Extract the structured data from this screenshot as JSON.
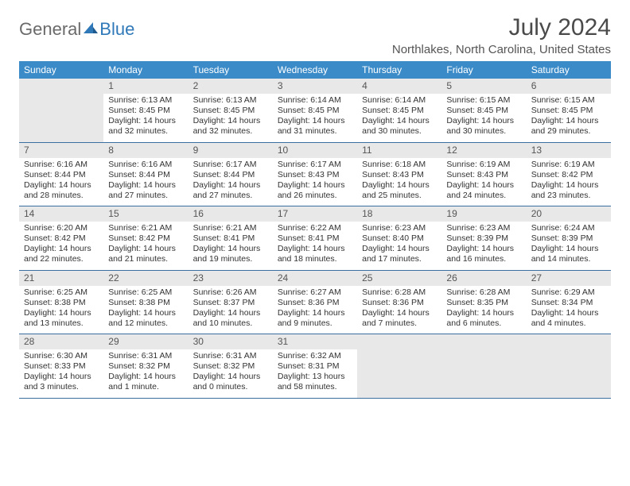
{
  "brand": {
    "part1": "General",
    "part2": "Blue"
  },
  "title": "July 2024",
  "location": "Northlakes, North Carolina, United States",
  "weekdays": [
    "Sunday",
    "Monday",
    "Tuesday",
    "Wednesday",
    "Thursday",
    "Friday",
    "Saturday"
  ],
  "colors": {
    "header_bg": "#3b8bc8",
    "header_text": "#ffffff",
    "row_divider": "#3b6fa0",
    "daynum_bg": "#e8e8e8",
    "text": "#333333",
    "title_text": "#4a4a4a",
    "logo_gray": "#6a6a6a",
    "logo_blue": "#2f79b8",
    "background": "#ffffff"
  },
  "typography": {
    "title_fontsize": 30,
    "location_fontsize": 15,
    "weekday_fontsize": 12,
    "daynum_fontsize": 12,
    "body_fontsize": 10.5
  },
  "layout": {
    "columns": 7,
    "rows": 5,
    "leading_blanks": 1,
    "trailing_blanks": 3
  },
  "days": [
    {
      "n": "1",
      "sunrise": "6:13 AM",
      "sunset": "8:45 PM",
      "daylight": "14 hours and 32 minutes."
    },
    {
      "n": "2",
      "sunrise": "6:13 AM",
      "sunset": "8:45 PM",
      "daylight": "14 hours and 32 minutes."
    },
    {
      "n": "3",
      "sunrise": "6:14 AM",
      "sunset": "8:45 PM",
      "daylight": "14 hours and 31 minutes."
    },
    {
      "n": "4",
      "sunrise": "6:14 AM",
      "sunset": "8:45 PM",
      "daylight": "14 hours and 30 minutes."
    },
    {
      "n": "5",
      "sunrise": "6:15 AM",
      "sunset": "8:45 PM",
      "daylight": "14 hours and 30 minutes."
    },
    {
      "n": "6",
      "sunrise": "6:15 AM",
      "sunset": "8:45 PM",
      "daylight": "14 hours and 29 minutes."
    },
    {
      "n": "7",
      "sunrise": "6:16 AM",
      "sunset": "8:44 PM",
      "daylight": "14 hours and 28 minutes."
    },
    {
      "n": "8",
      "sunrise": "6:16 AM",
      "sunset": "8:44 PM",
      "daylight": "14 hours and 27 minutes."
    },
    {
      "n": "9",
      "sunrise": "6:17 AM",
      "sunset": "8:44 PM",
      "daylight": "14 hours and 27 minutes."
    },
    {
      "n": "10",
      "sunrise": "6:17 AM",
      "sunset": "8:43 PM",
      "daylight": "14 hours and 26 minutes."
    },
    {
      "n": "11",
      "sunrise": "6:18 AM",
      "sunset": "8:43 PM",
      "daylight": "14 hours and 25 minutes."
    },
    {
      "n": "12",
      "sunrise": "6:19 AM",
      "sunset": "8:43 PM",
      "daylight": "14 hours and 24 minutes."
    },
    {
      "n": "13",
      "sunrise": "6:19 AM",
      "sunset": "8:42 PM",
      "daylight": "14 hours and 23 minutes."
    },
    {
      "n": "14",
      "sunrise": "6:20 AM",
      "sunset": "8:42 PM",
      "daylight": "14 hours and 22 minutes."
    },
    {
      "n": "15",
      "sunrise": "6:21 AM",
      "sunset": "8:42 PM",
      "daylight": "14 hours and 21 minutes."
    },
    {
      "n": "16",
      "sunrise": "6:21 AM",
      "sunset": "8:41 PM",
      "daylight": "14 hours and 19 minutes."
    },
    {
      "n": "17",
      "sunrise": "6:22 AM",
      "sunset": "8:41 PM",
      "daylight": "14 hours and 18 minutes."
    },
    {
      "n": "18",
      "sunrise": "6:23 AM",
      "sunset": "8:40 PM",
      "daylight": "14 hours and 17 minutes."
    },
    {
      "n": "19",
      "sunrise": "6:23 AM",
      "sunset": "8:39 PM",
      "daylight": "14 hours and 16 minutes."
    },
    {
      "n": "20",
      "sunrise": "6:24 AM",
      "sunset": "8:39 PM",
      "daylight": "14 hours and 14 minutes."
    },
    {
      "n": "21",
      "sunrise": "6:25 AM",
      "sunset": "8:38 PM",
      "daylight": "14 hours and 13 minutes."
    },
    {
      "n": "22",
      "sunrise": "6:25 AM",
      "sunset": "8:38 PM",
      "daylight": "14 hours and 12 minutes."
    },
    {
      "n": "23",
      "sunrise": "6:26 AM",
      "sunset": "8:37 PM",
      "daylight": "14 hours and 10 minutes."
    },
    {
      "n": "24",
      "sunrise": "6:27 AM",
      "sunset": "8:36 PM",
      "daylight": "14 hours and 9 minutes."
    },
    {
      "n": "25",
      "sunrise": "6:28 AM",
      "sunset": "8:36 PM",
      "daylight": "14 hours and 7 minutes."
    },
    {
      "n": "26",
      "sunrise": "6:28 AM",
      "sunset": "8:35 PM",
      "daylight": "14 hours and 6 minutes."
    },
    {
      "n": "27",
      "sunrise": "6:29 AM",
      "sunset": "8:34 PM",
      "daylight": "14 hours and 4 minutes."
    },
    {
      "n": "28",
      "sunrise": "6:30 AM",
      "sunset": "8:33 PM",
      "daylight": "14 hours and 3 minutes."
    },
    {
      "n": "29",
      "sunrise": "6:31 AM",
      "sunset": "8:32 PM",
      "daylight": "14 hours and 1 minute."
    },
    {
      "n": "30",
      "sunrise": "6:31 AM",
      "sunset": "8:32 PM",
      "daylight": "14 hours and 0 minutes."
    },
    {
      "n": "31",
      "sunrise": "6:32 AM",
      "sunset": "8:31 PM",
      "daylight": "13 hours and 58 minutes."
    }
  ],
  "labels": {
    "sunrise": "Sunrise: ",
    "sunset": "Sunset: ",
    "daylight": "Daylight: "
  }
}
